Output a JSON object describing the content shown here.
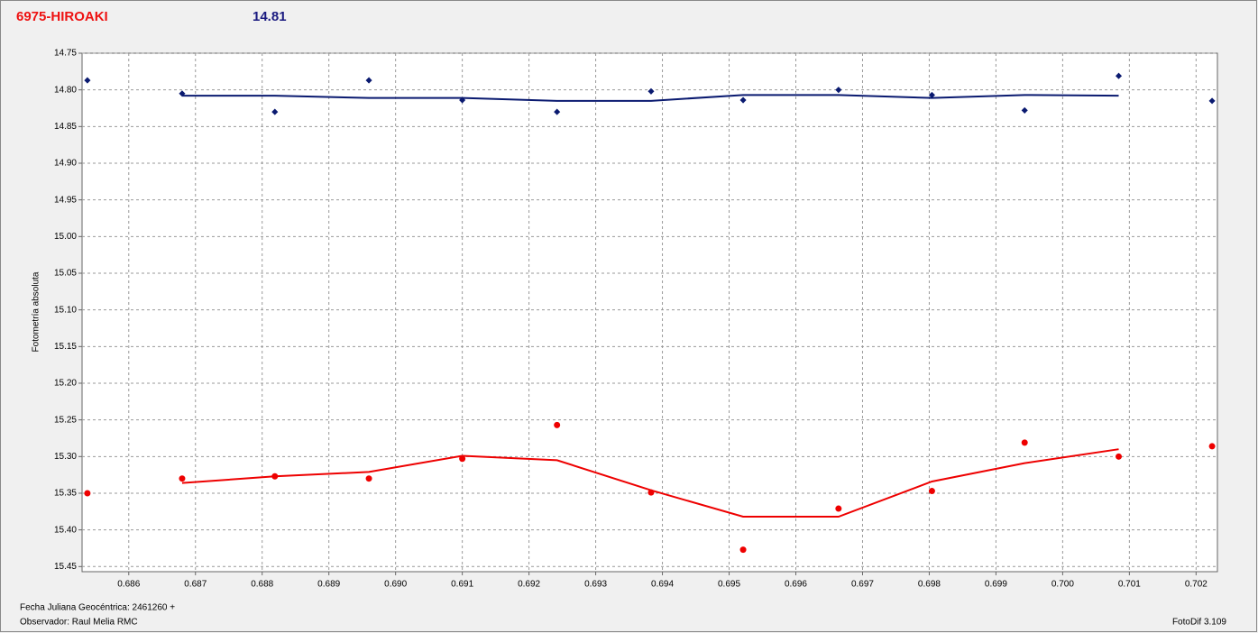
{
  "chart_data": {
    "type": "line",
    "title": "6975-HIROAKI",
    "title_color": "#ee1111",
    "subtitle": "14.81",
    "subtitle_color": "#1a1a80",
    "y_label": "Fotometría absoluta",
    "x_label": "Fecha Juliana Geocéntrica: 2461260 +",
    "observer": "Observador: Raul Melia RMC",
    "software": "FotoDif 3.109",
    "x": [
      0.68538,
      0.6868,
      0.68819,
      0.6896,
      0.691,
      0.69242,
      0.69383,
      0.69521,
      0.69664,
      0.69804,
      0.69943,
      0.70084,
      0.70224
    ],
    "series": [
      {
        "color": "#0a1a70",
        "style": "points",
        "values": [
          14.787,
          14.805,
          14.83,
          14.787,
          14.814,
          14.83,
          14.802,
          14.814,
          14.8,
          14.807,
          14.828,
          14.781,
          14.815
        ]
      },
      {
        "color": "#0a1a70",
        "style": "line",
        "values": [
          null,
          14.808,
          14.808,
          14.811,
          14.811,
          14.815,
          14.815,
          14.807,
          14.807,
          14.811,
          14.807,
          14.808,
          null
        ]
      },
      {
        "color": "#ee0000",
        "style": "points",
        "values": [
          15.35,
          15.33,
          15.327,
          15.33,
          15.303,
          15.257,
          15.349,
          15.427,
          15.371,
          15.347,
          15.281,
          15.3,
          15.286
        ]
      },
      {
        "color": "#ee0000",
        "style": "line",
        "values": [
          null,
          15.336,
          15.327,
          15.321,
          15.299,
          15.305,
          15.346,
          15.382,
          15.382,
          15.334,
          15.309,
          15.29,
          null
        ]
      }
    ],
    "xlim": [
      0.6853,
      0.70232
    ],
    "xticks": [
      0.686,
      0.687,
      0.688,
      0.689,
      {
        "value": 0.69,
        "label": "0.690"
      },
      0.691,
      0.692,
      0.693,
      0.694,
      0.695,
      0.696,
      0.697,
      0.698,
      0.699,
      {
        "value": 0.7,
        "label": "0.700"
      },
      0.701,
      0.702
    ],
    "ylim": [
      14.75,
      15.457
    ],
    "y_inverted": true,
    "yticks": [
      14.75,
      {
        "value": 14.8,
        "label": "14.80"
      },
      14.85,
      {
        "value": 14.9,
        "label": "14.90"
      },
      14.95,
      {
        "value": 15.0,
        "label": "15.00"
      },
      15.05,
      {
        "value": 15.1,
        "label": "15.10"
      },
      15.15,
      {
        "value": 15.2,
        "label": "15.20"
      },
      15.25,
      {
        "value": 15.3,
        "label": "15.30"
      },
      15.35,
      {
        "value": 15.4,
        "label": "15.40"
      },
      15.45
    ],
    "grid": true
  }
}
